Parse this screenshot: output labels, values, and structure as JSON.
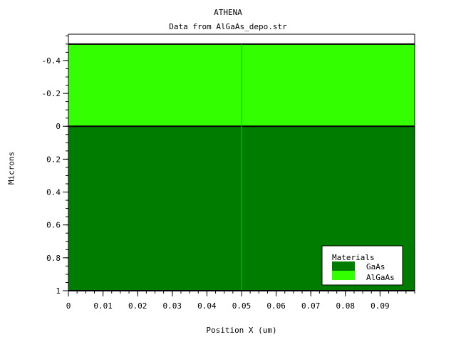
{
  "chart_data": {
    "type": "area",
    "title": "ATHENA",
    "subtitle": "Data from AlGaAs_depo.str",
    "xlabel": "Position X (um)",
    "ylabel": "Microns",
    "xlim": [
      0,
      0.1
    ],
    "ylim": [
      -0.56,
      1
    ],
    "y_inverted": true,
    "x_ticks": [
      0,
      0.01,
      0.02,
      0.03,
      0.04,
      0.05,
      0.06,
      0.07,
      0.08,
      0.09
    ],
    "x_tick_labels": [
      "0",
      "0.01",
      "0.02",
      "0.03",
      "0.04",
      "0.05",
      "0.06",
      "0.07",
      "0.08",
      "0.09"
    ],
    "y_ticks": [
      -0.4,
      -0.2,
      0,
      0.2,
      0.4,
      0.6,
      0.8,
      1
    ],
    "y_tick_labels": [
      "-0.4",
      "-0.2",
      "0",
      "0.2",
      "0.4",
      "0.6",
      "0.8",
      "1"
    ],
    "grid": false,
    "legend_position": "bottom-right",
    "legend_title": "Materials",
    "regions": [
      {
        "name": "GaAs",
        "y_top": 0,
        "y_bottom": 1,
        "color": "#007d00"
      },
      {
        "name": "AlGaAs",
        "y_top": -0.5,
        "y_bottom": 0,
        "color": "#33ff00"
      }
    ],
    "mesh_line_x": 0.05,
    "mesh_line_color": "#00c800"
  }
}
